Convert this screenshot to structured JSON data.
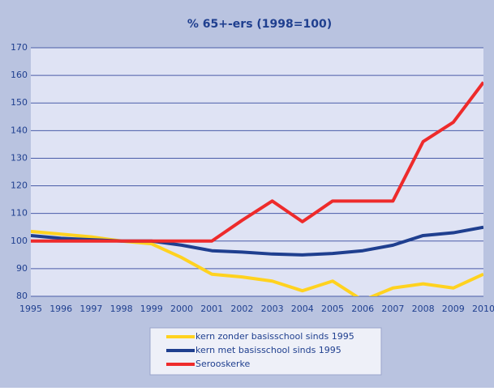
{
  "chart_data": {
    "type": "line",
    "title": "% 65+-ers (1998=100)",
    "categories": [
      "1995",
      "1996",
      "1997",
      "1998",
      "1999",
      "2000",
      "2001",
      "2002",
      "2003",
      "2004",
      "2005",
      "2006",
      "2007",
      "2008",
      "2009",
      "2010"
    ],
    "series": [
      {
        "name": "kern zonder basisschool sinds 1995",
        "color": "#ffd21f",
        "values": [
          103.5,
          102.5,
          101.5,
          100,
          99,
          94,
          88,
          87,
          85.5,
          82,
          85.5,
          78.5,
          83,
          84.5,
          83,
          88
        ]
      },
      {
        "name": "kern met basisschool sinds 1995",
        "color": "#1f3f8f",
        "values": [
          102,
          101,
          100.5,
          100,
          100,
          98.5,
          96.5,
          96,
          95.3,
          95,
          95.5,
          96.5,
          98.5,
          102,
          103,
          105
        ]
      },
      {
        "name": "Serooskerke",
        "color": "#ee2b2b",
        "values": [
          100,
          100,
          100,
          100,
          100,
          100,
          100,
          107.5,
          114.5,
          107,
          114.5,
          114.5,
          114.5,
          136,
          143,
          157.5
        ]
      }
    ],
    "ylim": [
      80,
      170
    ],
    "yticks": [
      80,
      90,
      100,
      110,
      120,
      130,
      140,
      150,
      160,
      170
    ],
    "grid": true
  }
}
